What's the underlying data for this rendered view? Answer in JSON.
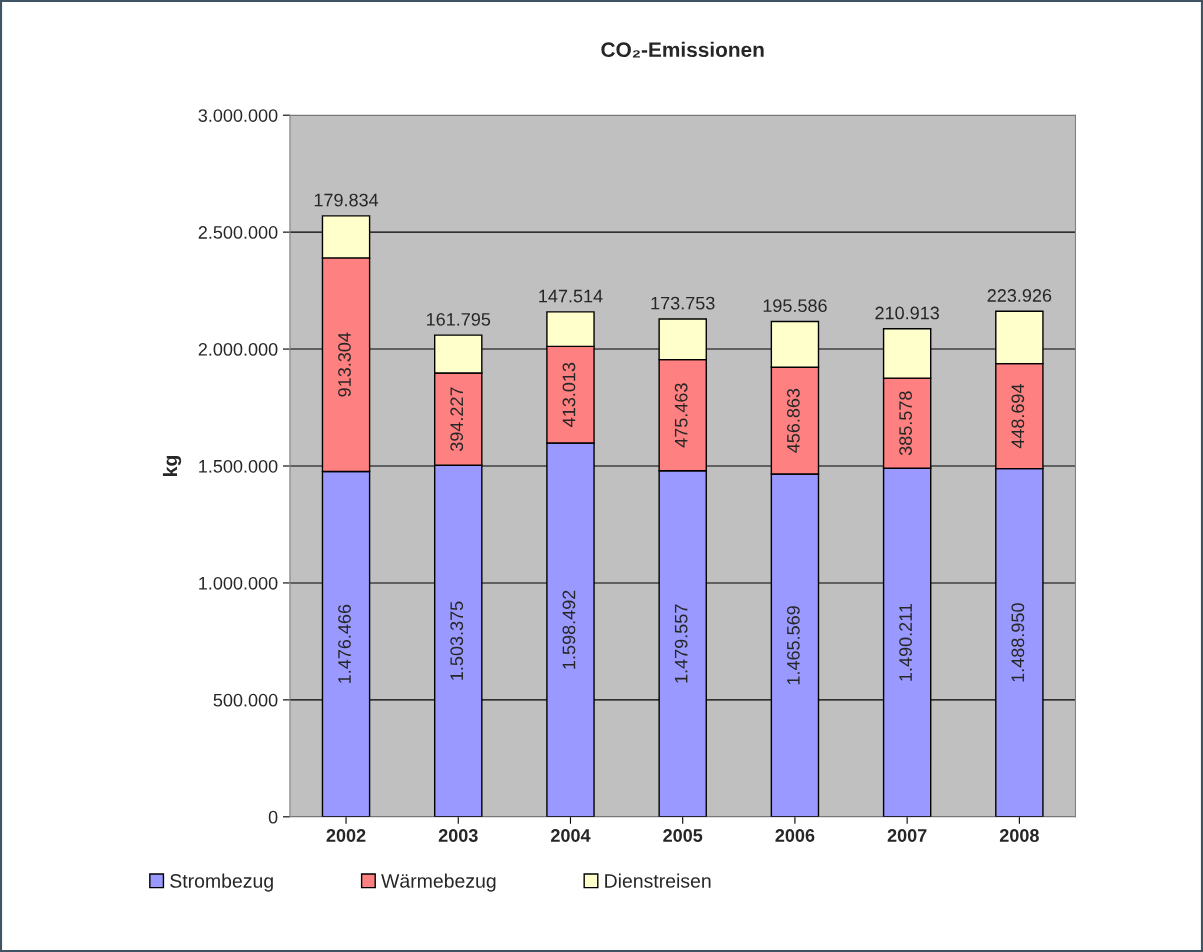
{
  "chart_data": {
    "type": "bar",
    "title": "CO₂-Emissionen",
    "ylabel": "kg",
    "stacked": true,
    "categories": [
      "2002",
      "2003",
      "2004",
      "2005",
      "2006",
      "2007",
      "2008"
    ],
    "series": [
      {
        "name": "Strombezug",
        "color": "#9999ff",
        "values": [
          1476466,
          1503375,
          1598492,
          1479557,
          1465569,
          1490211,
          1488950
        ],
        "value_labels": [
          "1.476.466",
          "1.503.375",
          "1.598.492",
          "1.479.557",
          "1.465.569",
          "1.490.211",
          "1.488.950"
        ]
      },
      {
        "name": "Wärmebezug",
        "color": "#ff8080",
        "values": [
          913304,
          394227,
          413013,
          475463,
          456863,
          385578,
          448694
        ],
        "value_labels": [
          "913.304",
          "394.227",
          "413.013",
          "475.463",
          "456.863",
          "385.578",
          "448.694"
        ]
      },
      {
        "name": "Dienstreisen",
        "color": "#ffffcc",
        "values": [
          179834,
          161795,
          147514,
          173753,
          195586,
          210913,
          223926
        ],
        "value_labels": [
          "179.834",
          "161.795",
          "147.514",
          "173.753",
          "195.586",
          "210.913",
          "223.926"
        ]
      }
    ],
    "ylim": [
      0,
      3000000
    ],
    "yticks": [
      0,
      {
        "value": 500000,
        "label": "500.000"
      },
      {
        "value": 1000000,
        "label": "1.000.000"
      },
      {
        "value": 1500000,
        "label": "1.500.000"
      },
      {
        "value": 2000000,
        "label": "2.000.000"
      },
      {
        "value": 2500000,
        "label": "2.500.000"
      },
      {
        "value": 3000000,
        "label": "3.000.000"
      }
    ],
    "grid": "y",
    "legend": "bottom"
  }
}
